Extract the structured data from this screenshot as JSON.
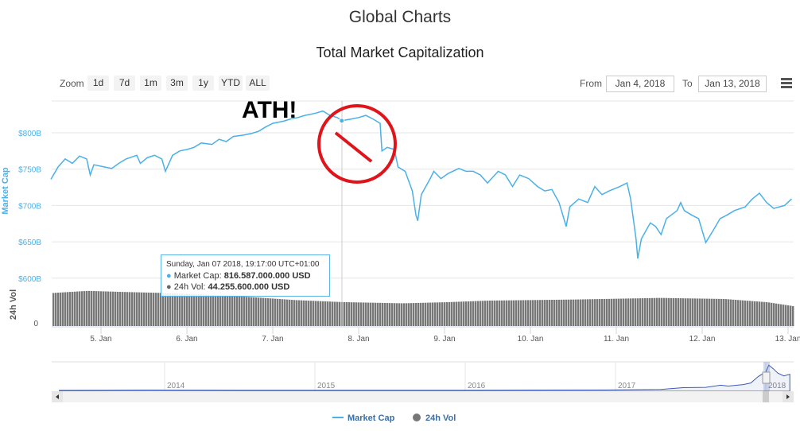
{
  "header": {
    "title": "Global Charts",
    "subtitle": "Total Market Capitalization"
  },
  "toolbar": {
    "zoom_label": "Zoom",
    "zoom_buttons": [
      "1d",
      "7d",
      "1m",
      "3m",
      "1y",
      "YTD",
      "ALL"
    ],
    "from_label": "From",
    "from_value": "Jan 4, 2018",
    "to_label": "To",
    "to_value": "Jan 13, 2018",
    "menu_icon": "hamburger-menu-icon"
  },
  "annotation": {
    "text": "ATH!",
    "mark": "red-prohibition-circle",
    "color": "#e0151b"
  },
  "tooltip": {
    "date": "Sunday, Jan 07 2018, 19:17:00 UTC+01:00",
    "mc_label": "Market Cap:",
    "mc_value": "816.587.000.000 USD",
    "vol_label": "24h Vol:",
    "vol_value": "44.255.600.000 USD"
  },
  "legend": {
    "items": [
      "Market Cap",
      "24h Vol"
    ]
  },
  "colors": {
    "market_cap": "#4ab0e8",
    "volume": "#777777",
    "navigator": "#3b5bb5"
  },
  "chart_data": {
    "type": "line",
    "title": "Total Market Capitalization",
    "ylabel": "Market Cap",
    "ylabel2": "24h Vol",
    "yticks": [
      "$600B",
      "$650B",
      "$700B",
      "$750B",
      "$800B"
    ],
    "ytick_values": [
      600,
      650,
      700,
      750,
      800
    ],
    "vol_ticks": [
      "0"
    ],
    "xticks": [
      "5. Jan",
      "6. Jan",
      "7. Jan",
      "8. Jan",
      "9. Jan",
      "10. Jan",
      "11. Jan",
      "12. Jan",
      "13. Jan"
    ],
    "xrange": [
      "2018-01-04T10:00",
      "2018-01-13T02:00"
    ],
    "grid": true,
    "legend_placement": "bottom",
    "series": [
      {
        "name": "Market Cap",
        "unit": "USD billions",
        "points": [
          [
            "2018-01-04T10:00",
            736
          ],
          [
            "2018-01-04T12:00",
            753
          ],
          [
            "2018-01-04T14:00",
            764
          ],
          [
            "2018-01-04T16:00",
            758
          ],
          [
            "2018-01-04T18:00",
            768
          ],
          [
            "2018-01-04T20:00",
            764
          ],
          [
            "2018-01-04T21:00",
            742
          ],
          [
            "2018-01-04T22:00",
            756
          ],
          [
            "2018-01-05T01:00",
            753
          ],
          [
            "2018-01-05T03:00",
            751
          ],
          [
            "2018-01-05T05:00",
            758
          ],
          [
            "2018-01-05T07:00",
            764
          ],
          [
            "2018-01-05T10:00",
            769
          ],
          [
            "2018-01-05T11:00",
            758
          ],
          [
            "2018-01-05T13:00",
            766
          ],
          [
            "2018-01-05T15:00",
            769
          ],
          [
            "2018-01-05T17:00",
            764
          ],
          [
            "2018-01-05T18:00",
            747
          ],
          [
            "2018-01-05T20:00",
            769
          ],
          [
            "2018-01-05T22:00",
            775
          ],
          [
            "2018-01-06T00:00",
            777
          ],
          [
            "2018-01-06T02:00",
            780
          ],
          [
            "2018-01-06T04:00",
            786
          ],
          [
            "2018-01-06T07:00",
            784
          ],
          [
            "2018-01-06T09:00",
            791
          ],
          [
            "2018-01-06T11:00",
            788
          ],
          [
            "2018-01-06T13:00",
            795
          ],
          [
            "2018-01-06T16:00",
            797
          ],
          [
            "2018-01-06T18:00",
            799
          ],
          [
            "2018-01-06T20:00",
            802
          ],
          [
            "2018-01-06T22:00",
            808
          ],
          [
            "2018-01-07T00:00",
            813
          ],
          [
            "2018-01-07T03:00",
            816
          ],
          [
            "2018-01-07T05:00",
            819
          ],
          [
            "2018-01-07T07:00",
            821
          ],
          [
            "2018-01-07T09:00",
            824
          ],
          [
            "2018-01-07T12:00",
            827
          ],
          [
            "2018-01-07T14:00",
            830
          ],
          [
            "2018-01-07T16:00",
            824
          ],
          [
            "2018-01-07T18:00",
            821
          ],
          [
            "2018-01-07T19:17",
            816.587
          ],
          [
            "2018-01-07T22:00",
            819
          ],
          [
            "2018-01-08T00:00",
            821
          ],
          [
            "2018-01-08T02:00",
            824
          ],
          [
            "2018-01-08T04:00",
            819
          ],
          [
            "2018-01-08T06:00",
            813
          ],
          [
            "2018-01-08T06:30",
            775
          ],
          [
            "2018-01-08T08:00",
            780
          ],
          [
            "2018-01-08T10:00",
            777
          ],
          [
            "2018-01-08T11:00",
            753
          ],
          [
            "2018-01-08T13:00",
            747
          ],
          [
            "2018-01-08T15:00",
            720
          ],
          [
            "2018-01-08T16:00",
            687
          ],
          [
            "2018-01-08T16:30",
            679
          ],
          [
            "2018-01-08T17:30",
            715
          ],
          [
            "2018-01-08T20:00",
            737
          ],
          [
            "2018-01-08T21:00",
            747
          ],
          [
            "2018-01-08T23:00",
            737
          ],
          [
            "2018-01-09T01:00",
            744
          ],
          [
            "2018-01-09T04:00",
            751
          ],
          [
            "2018-01-09T06:00",
            747
          ],
          [
            "2018-01-09T08:00",
            747
          ],
          [
            "2018-01-09T10:00",
            742
          ],
          [
            "2018-01-09T12:00",
            731
          ],
          [
            "2018-01-09T15:00",
            747
          ],
          [
            "2018-01-09T17:00",
            742
          ],
          [
            "2018-01-09T19:00",
            726
          ],
          [
            "2018-01-09T21:00",
            742
          ],
          [
            "2018-01-09T23:30",
            737
          ],
          [
            "2018-01-10T02:00",
            726
          ],
          [
            "2018-01-10T04:00",
            720
          ],
          [
            "2018-01-10T06:00",
            722
          ],
          [
            "2018-01-10T08:00",
            704
          ],
          [
            "2018-01-10T10:00",
            671
          ],
          [
            "2018-01-10T11:00",
            698
          ],
          [
            "2018-01-10T13:30",
            709
          ],
          [
            "2018-01-10T16:00",
            704
          ],
          [
            "2018-01-10T18:00",
            726
          ],
          [
            "2018-01-10T20:00",
            715
          ],
          [
            "2018-01-10T22:00",
            720
          ],
          [
            "2018-01-11T01:00",
            726
          ],
          [
            "2018-01-11T03:00",
            731
          ],
          [
            "2018-01-11T04:00",
            709
          ],
          [
            "2018-01-11T05:30",
            654
          ],
          [
            "2018-01-11T06:00",
            627
          ],
          [
            "2018-01-11T07:00",
            654
          ],
          [
            "2018-01-11T09:30",
            676
          ],
          [
            "2018-01-11T11:00",
            671
          ],
          [
            "2018-01-11T12:30",
            660
          ],
          [
            "2018-01-11T14:00",
            682
          ],
          [
            "2018-01-11T17:00",
            693
          ],
          [
            "2018-01-11T18:00",
            704
          ],
          [
            "2018-01-11T19:00",
            693
          ],
          [
            "2018-01-11T21:00",
            687
          ],
          [
            "2018-01-11T23:00",
            682
          ],
          [
            "2018-01-12T01:00",
            649
          ],
          [
            "2018-01-12T03:00",
            665
          ],
          [
            "2018-01-12T05:00",
            682
          ],
          [
            "2018-01-12T07:00",
            687
          ],
          [
            "2018-01-12T09:00",
            693
          ],
          [
            "2018-01-12T12:00",
            698
          ],
          [
            "2018-01-12T14:00",
            709
          ],
          [
            "2018-01-12T16:00",
            717
          ],
          [
            "2018-01-12T18:00",
            704
          ],
          [
            "2018-01-12T20:00",
            696
          ],
          [
            "2018-01-12T23:00",
            700
          ],
          [
            "2018-01-13T01:00",
            709
          ]
        ]
      },
      {
        "name": "24h Vol",
        "unit": "USD billions",
        "type": "bar",
        "points": [
          [
            "2018-01-04T10:00",
            61
          ],
          [
            "2018-01-04T20:00",
            65
          ],
          [
            "2018-01-05T06:00",
            63
          ],
          [
            "2018-01-05T18:00",
            61
          ],
          [
            "2018-01-06T12:00",
            56
          ],
          [
            "2018-01-07T06:00",
            48
          ],
          [
            "2018-01-07T19:17",
            44.2556
          ],
          [
            "2018-01-08T12:00",
            42
          ],
          [
            "2018-01-09T00:00",
            44
          ],
          [
            "2018-01-09T12:00",
            47
          ],
          [
            "2018-01-10T12:00",
            49
          ],
          [
            "2018-01-11T12:00",
            52
          ],
          [
            "2018-01-12T06:00",
            50
          ],
          [
            "2018-01-12T18:00",
            44
          ],
          [
            "2018-01-13T02:00",
            36
          ]
        ]
      }
    ],
    "navigator": {
      "year_labels": [
        "2014",
        "2015",
        "2016",
        "2017",
        "2018"
      ],
      "points": [
        [
          2013.3,
          2
        ],
        [
          2013.9,
          12
        ],
        [
          2014.1,
          10
        ],
        [
          2014.5,
          8
        ],
        [
          2015.0,
          4
        ],
        [
          2015.5,
          4
        ],
        [
          2016.0,
          7
        ],
        [
          2016.5,
          12
        ],
        [
          2017.0,
          18
        ],
        [
          2017.3,
          30
        ],
        [
          2017.45,
          90
        ],
        [
          2017.6,
          100
        ],
        [
          2017.7,
          170
        ],
        [
          2017.75,
          140
        ],
        [
          2017.85,
          190
        ],
        [
          2017.9,
          240
        ],
        [
          2017.95,
          450
        ],
        [
          2018.0,
          600
        ],
        [
          2018.02,
          816
        ],
        [
          2018.05,
          700
        ],
        [
          2018.08,
          560
        ],
        [
          2018.12,
          470
        ],
        [
          2018.16,
          520
        ]
      ]
    }
  }
}
